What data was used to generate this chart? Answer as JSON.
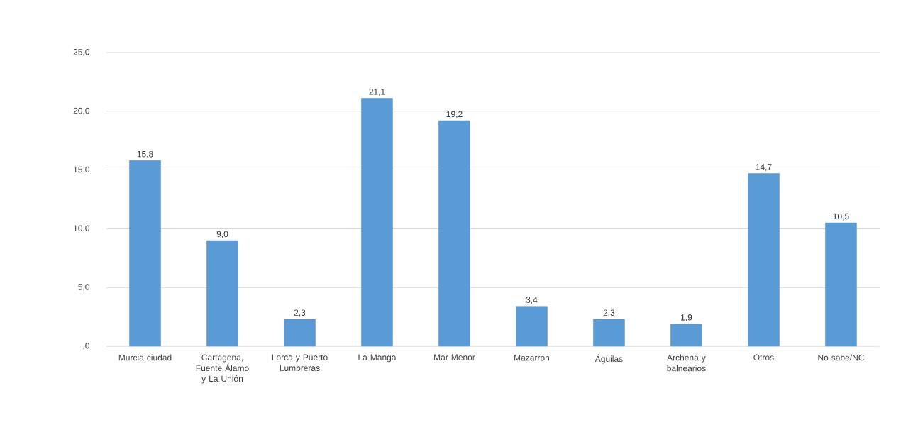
{
  "chart_data": {
    "type": "bar",
    "categories": [
      "Murcia ciudad",
      "Cartagena, Fuente Álamo y La Unión",
      "Lorca y Puerto Lumbreras",
      "La Manga",
      "Mar Menor",
      "Mazarrón",
      "Águilas",
      "Archena y balnearios",
      "Otros",
      "No sabe/NC"
    ],
    "values": [
      15.8,
      9.0,
      2.3,
      21.1,
      19.2,
      3.4,
      2.3,
      1.9,
      14.7,
      10.5
    ],
    "value_labels": [
      "15,8",
      "9,0",
      "2,3",
      "21,1",
      "19,2",
      "3,4",
      "2,3",
      "1,9",
      "14,7",
      "10,5"
    ],
    "color": "#5b9bd5",
    "ylim": [
      0,
      25
    ],
    "yticks": [
      {
        "value": 0,
        "label": ",0"
      },
      {
        "value": 5,
        "label": "5,0"
      },
      {
        "value": 10,
        "label": "10,0"
      },
      {
        "value": 15,
        "label": "15,0"
      },
      {
        "value": 20,
        "label": "20,0"
      },
      {
        "value": 25,
        "label": "25,0"
      }
    ],
    "grid": "y"
  }
}
